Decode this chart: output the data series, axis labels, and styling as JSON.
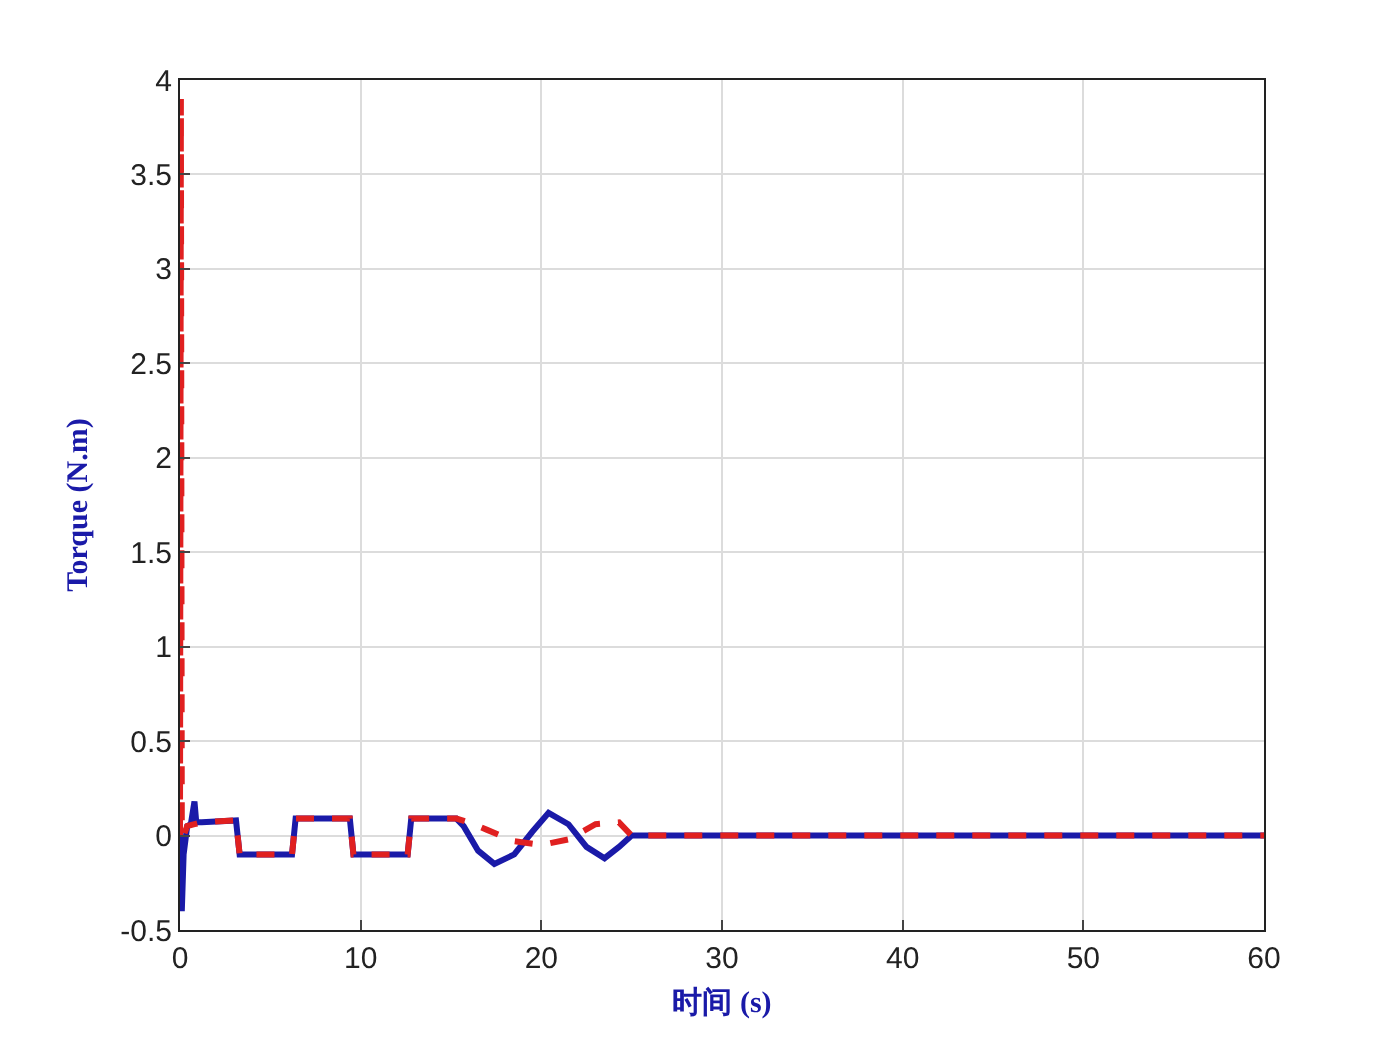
{
  "chart_data": {
    "type": "line",
    "xlabel": "时间 (s)",
    "ylabel": "Torque (N.m)",
    "xlim": [
      0,
      60
    ],
    "xticks": [
      0,
      10,
      20,
      30,
      40,
      50,
      60
    ],
    "ylim": [
      -0.5,
      4
    ],
    "yticks": [
      -0.5,
      0,
      0.5,
      1,
      1.5,
      2,
      2.5,
      3,
      3.5,
      4
    ],
    "grid": true,
    "series": [
      {
        "color": "#1a1aa8",
        "line_style": "solid",
        "x": [
          0,
          0.1,
          0.2,
          0.4,
          0.6,
          0.8,
          0.9,
          1.2,
          3.1,
          3.3,
          6.2,
          6.4,
          9.4,
          9.6,
          12.6,
          12.8,
          15.3,
          15.7,
          16.5,
          17.4,
          18.5,
          19.5,
          20.4,
          21.5,
          22.5,
          23.5,
          24.3,
          25,
          60
        ],
        "values": [
          0,
          -0.4,
          -0.1,
          0.05,
          0.06,
          0.18,
          0.07,
          0.07,
          0.08,
          -0.1,
          -0.1,
          0.09,
          0.09,
          -0.1,
          -0.1,
          0.09,
          0.09,
          0.05,
          -0.08,
          -0.15,
          -0.1,
          0.02,
          0.12,
          0.06,
          -0.06,
          -0.12,
          -0.06,
          0,
          0
        ]
      },
      {
        "color": "#e02020",
        "line_style": "dashed",
        "x": [
          0,
          0.05,
          0.1,
          0.2,
          0.4,
          0.8,
          1.2,
          3.1,
          3.3,
          6.2,
          6.4,
          9.4,
          9.6,
          12.6,
          12.8,
          15.3,
          16,
          17,
          18.5,
          20,
          21.5,
          23,
          24.3,
          25,
          60
        ],
        "values": [
          0,
          3.9,
          0.05,
          0,
          0.05,
          0.06,
          0.07,
          0.08,
          -0.1,
          -0.1,
          0.09,
          0.09,
          -0.1,
          -0.1,
          0.09,
          0.09,
          0.07,
          0.03,
          -0.03,
          -0.05,
          -0.02,
          0.06,
          0.07,
          0,
          0
        ]
      }
    ]
  }
}
